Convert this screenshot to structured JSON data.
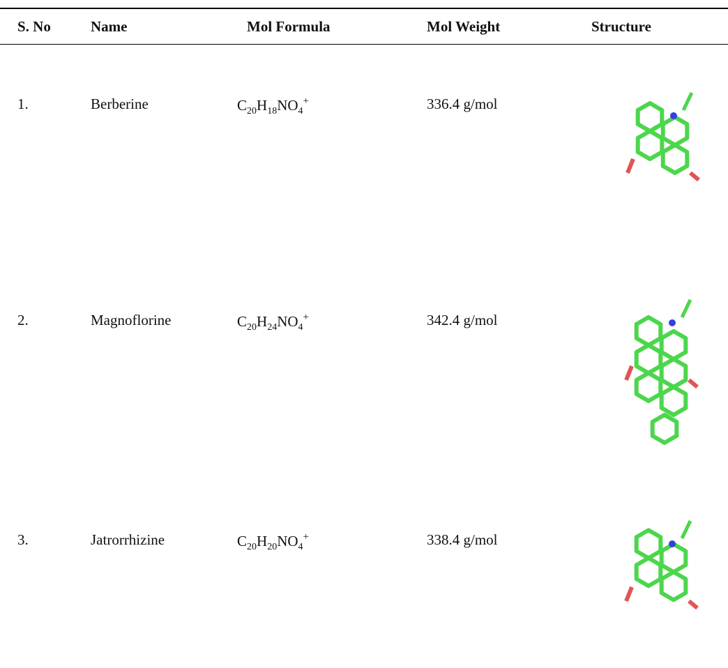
{
  "table": {
    "header": [
      "S. No",
      "Name",
      "Mol Formula",
      "Mol Weight",
      "Structure"
    ],
    "rows": [
      {
        "sno": "1.",
        "name": "Berberine",
        "formula": [
          {
            "text": "C"
          },
          {
            "sub": "20"
          },
          {
            "text": "H"
          },
          {
            "sub": "18"
          },
          {
            "text": "NO"
          },
          {
            "sub": "4"
          },
          {
            "sup": "+"
          }
        ],
        "weight": "336.4 g/mol"
      },
      {
        "sno": "2.",
        "name": "Magnoflorine",
        "formula": [
          {
            "text": "C"
          },
          {
            "sub": "20"
          },
          {
            "text": "H"
          },
          {
            "sub": "24"
          },
          {
            "text": "NO"
          },
          {
            "sub": "4"
          },
          {
            "sup": "+"
          }
        ],
        "weight": "342.4 g/mol"
      },
      {
        "sno": "3.",
        "name": "Jatrorrhizine",
        "formula": [
          {
            "text": "C"
          },
          {
            "sub": "20"
          },
          {
            "text": "H"
          },
          {
            "sub": "20"
          },
          {
            "text": "NO"
          },
          {
            "sub": "4"
          },
          {
            "sup": "+"
          }
        ],
        "weight": "338.4 g/mol"
      }
    ]
  }
}
